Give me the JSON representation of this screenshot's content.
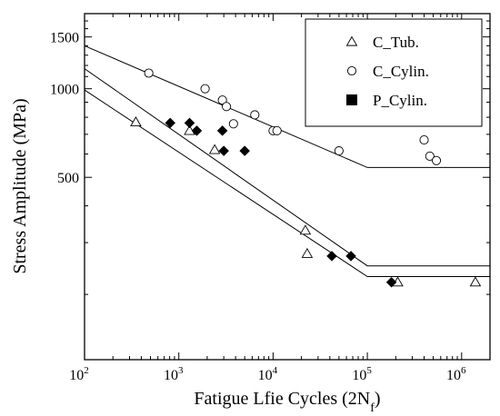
{
  "chart_data": {
    "type": "scatter",
    "xscale": "log",
    "yscale": "log",
    "xlim": [
      100,
      2000000
    ],
    "ylim": [
      120,
      1800
    ],
    "xlabel_main": "Fatigue Lfie Cycles (2N",
    "xlabel_sub": "f",
    "xlabel_end": ")",
    "ylabel": "Stress Amplitude (MPa)",
    "x_ticks": [
      {
        "value": 100,
        "base": "10",
        "exp": "2"
      },
      {
        "value": 1000,
        "base": "10",
        "exp": "3"
      },
      {
        "value": 10000,
        "base": "10",
        "exp": "4"
      },
      {
        "value": 100000,
        "base": "10",
        "exp": "5"
      },
      {
        "value": 1000000,
        "base": "10",
        "exp": "6"
      }
    ],
    "y_ticks": [
      {
        "value": 500,
        "label": "500"
      },
      {
        "value": 1000,
        "label": "1000"
      },
      {
        "value": 1500,
        "label": "1500"
      }
    ],
    "grid": false,
    "legend_position": "top-right",
    "series": [
      {
        "name": "C_Tub.",
        "marker": "triangle-open",
        "points": [
          {
            "x": 350,
            "y": 770
          },
          {
            "x": 1300,
            "y": 720
          },
          {
            "x": 2400,
            "y": 620
          },
          {
            "x": 22000,
            "y": 330
          },
          {
            "x": 23000,
            "y": 275
          },
          {
            "x": 210000,
            "y": 220
          },
          {
            "x": 1400000,
            "y": 220
          }
        ]
      },
      {
        "name": "C_Cylin.",
        "marker": "circle-open",
        "points": [
          {
            "x": 480,
            "y": 1130
          },
          {
            "x": 1900,
            "y": 1000
          },
          {
            "x": 2900,
            "y": 915
          },
          {
            "x": 3200,
            "y": 870
          },
          {
            "x": 3800,
            "y": 760
          },
          {
            "x": 6400,
            "y": 815
          },
          {
            "x": 10000,
            "y": 720
          },
          {
            "x": 11000,
            "y": 720
          },
          {
            "x": 50000,
            "y": 615
          },
          {
            "x": 400000,
            "y": 670
          },
          {
            "x": 460000,
            "y": 590
          },
          {
            "x": 540000,
            "y": 570
          }
        ]
      },
      {
        "name": "P_Cylin.",
        "marker": "diamond-filled",
        "legend_marker": "square-filled",
        "points": [
          {
            "x": 810,
            "y": 765
          },
          {
            "x": 1300,
            "y": 765
          },
          {
            "x": 1550,
            "y": 720
          },
          {
            "x": 2900,
            "y": 720
          },
          {
            "x": 3000,
            "y": 615
          },
          {
            "x": 5000,
            "y": 615
          },
          {
            "x": 42000,
            "y": 270
          },
          {
            "x": 67000,
            "y": 270
          },
          {
            "x": 180000,
            "y": 220
          }
        ]
      }
    ],
    "fit_lines": [
      {
        "points": [
          {
            "x": 100,
            "y": 1400
          },
          {
            "x": 100000,
            "y": 540
          },
          {
            "x": 2000000,
            "y": 540
          }
        ]
      },
      {
        "points": [
          {
            "x": 100,
            "y": 1170
          },
          {
            "x": 100000,
            "y": 250
          },
          {
            "x": 2000000,
            "y": 250
          }
        ]
      },
      {
        "points": [
          {
            "x": 100,
            "y": 990
          },
          {
            "x": 100000,
            "y": 230
          },
          {
            "x": 2000000,
            "y": 230
          }
        ]
      }
    ]
  }
}
